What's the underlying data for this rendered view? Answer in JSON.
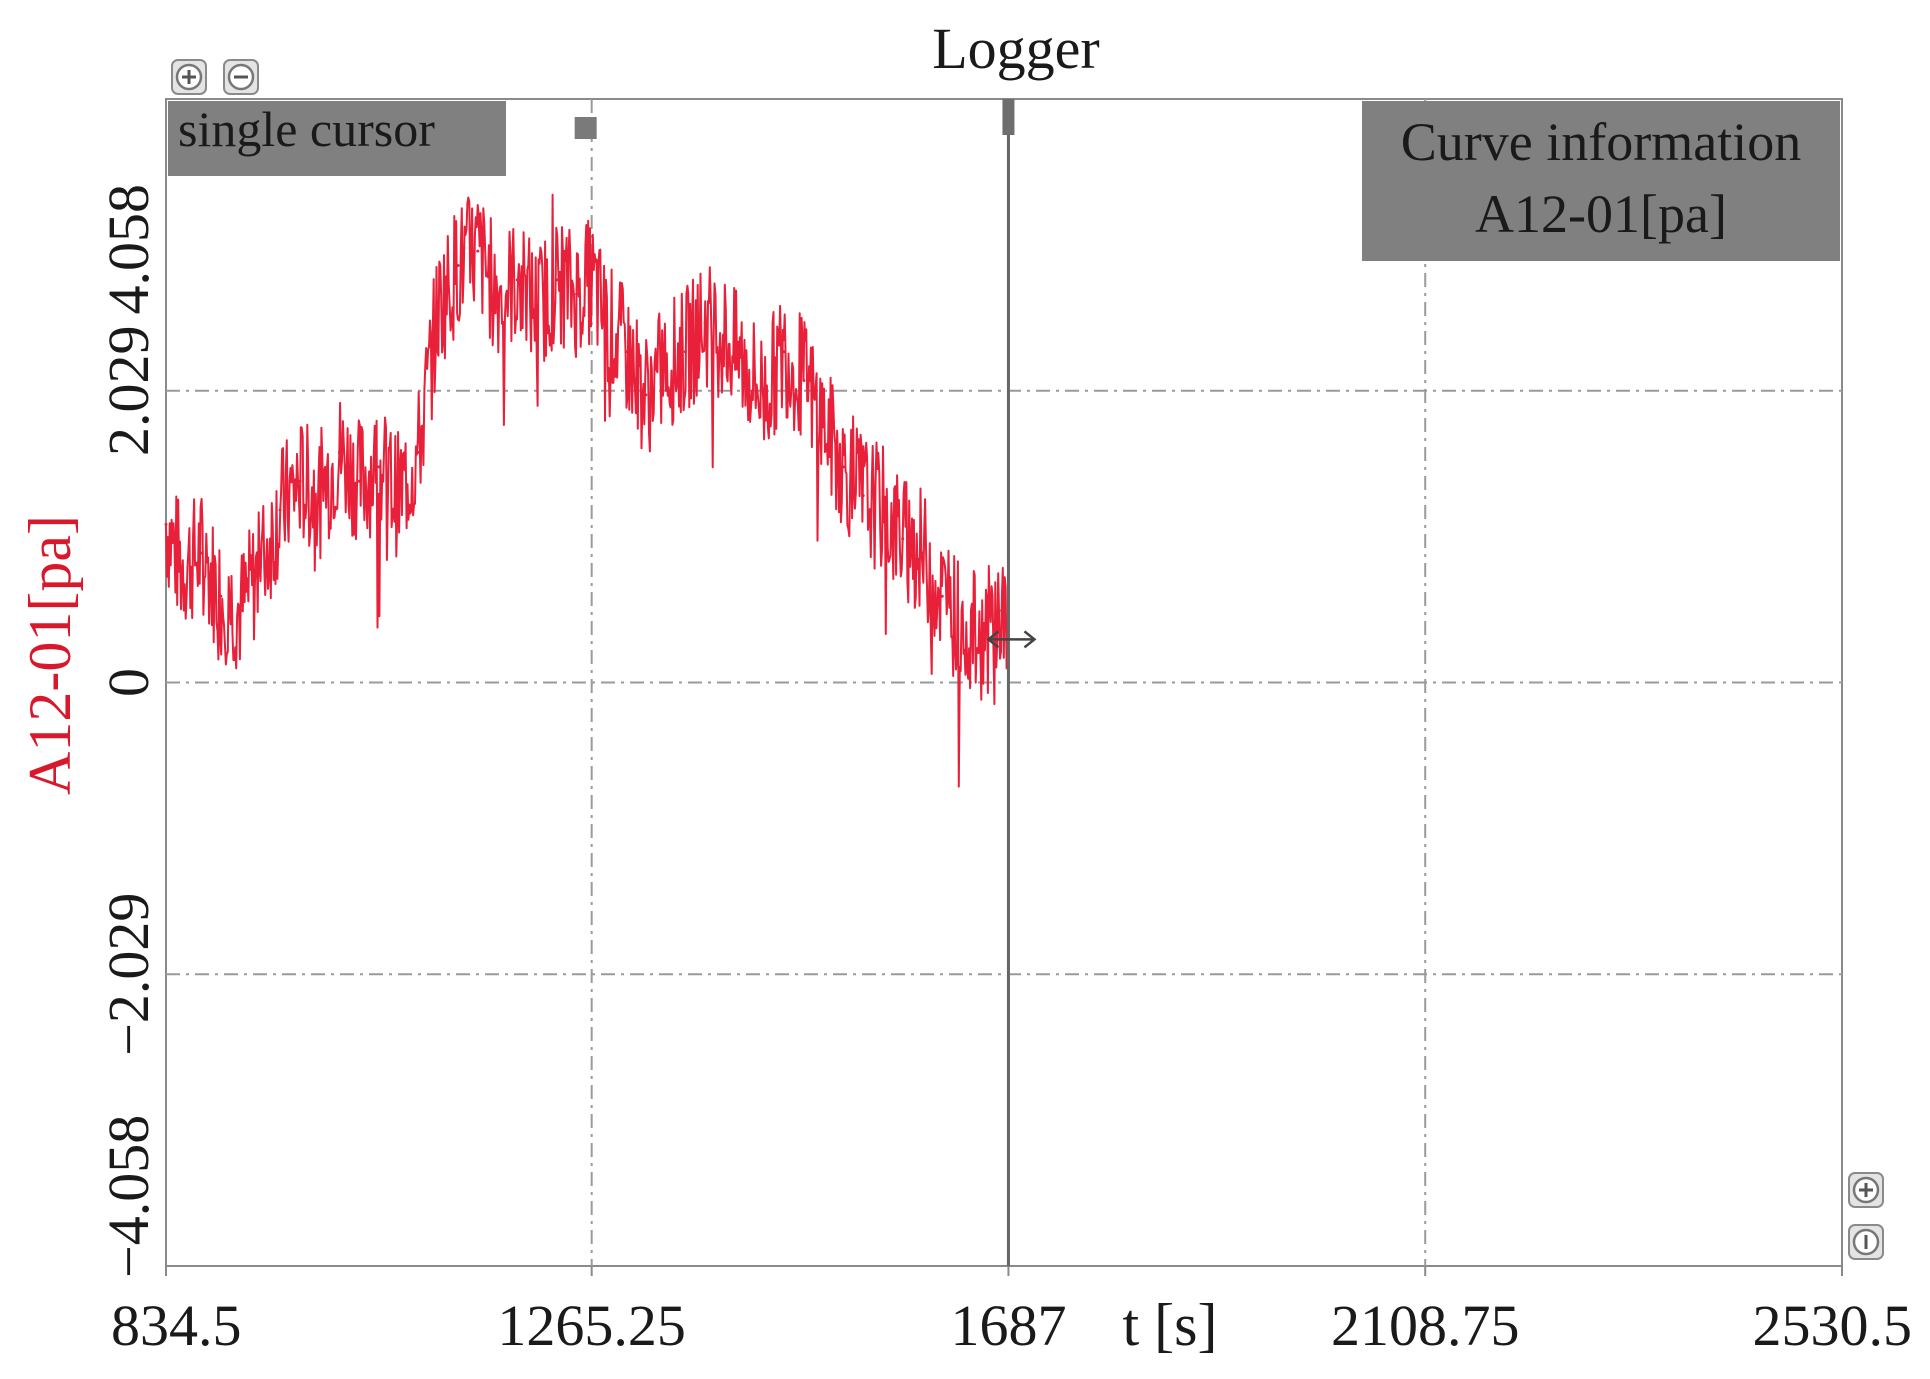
{
  "chart_data": {
    "type": "line",
    "title": "Logger",
    "xlabel": "t [s]",
    "ylabel": "A12-01[pa]",
    "xlim": [
      834.5,
      2530.5
    ],
    "ylim": [
      -4.058,
      4.058
    ],
    "x_ticks": [
      834.5,
      1265.25,
      1687,
      2108.75,
      2530.5
    ],
    "x_tick_labels": [
      "834.5",
      "1265.25",
      "1687",
      "2108.75",
      "2530.5"
    ],
    "y_ticks": [
      -4.058,
      -2.029,
      0,
      2.029,
      4.058
    ],
    "y_tick_labels": [
      "−4.058",
      "−2.029",
      "0",
      "2.029",
      "4.058"
    ],
    "grid": true,
    "series": [
      {
        "name": "A12-01[pa]",
        "color": "#e8203a",
        "x": [
          834.5,
          850,
          870,
          890,
          910,
          930,
          950,
          970,
          990,
          1010,
          1030,
          1050,
          1070,
          1090,
          1110,
          1130,
          1150,
          1170,
          1190,
          1210,
          1230,
          1250,
          1265,
          1280,
          1300,
          1320,
          1340,
          1360,
          1380,
          1400,
          1420,
          1440,
          1460,
          1480,
          1500,
          1520,
          1540,
          1560,
          1580,
          1600,
          1620,
          1640,
          1660,
          1680,
          1687
        ],
        "y": [
          1.1,
          0.8,
          0.9,
          0.6,
          0.5,
          0.8,
          1.2,
          1.4,
          1.3,
          1.6,
          1.4,
          1.5,
          1.3,
          1.6,
          2.6,
          2.9,
          3.0,
          2.7,
          2.8,
          2.6,
          2.8,
          2.7,
          2.8,
          2.5,
          2.3,
          2.0,
          2.2,
          2.3,
          2.5,
          2.4,
          2.2,
          2.0,
          2.3,
          2.1,
          1.8,
          1.5,
          1.3,
          1.2,
          1.0,
          0.9,
          0.6,
          0.4,
          0.3,
          0.5,
          0.3
        ]
      }
    ],
    "cursor": {
      "x": 1687,
      "label": "single cursor"
    },
    "info_box": {
      "line1": "Curve information",
      "line2": "A12-01[pa]"
    },
    "legend": "top-right",
    "colors": {
      "series": "#e8203a",
      "ylabel": "#d8192c",
      "panel": "#808080",
      "grid": "#9a9a9a"
    }
  }
}
